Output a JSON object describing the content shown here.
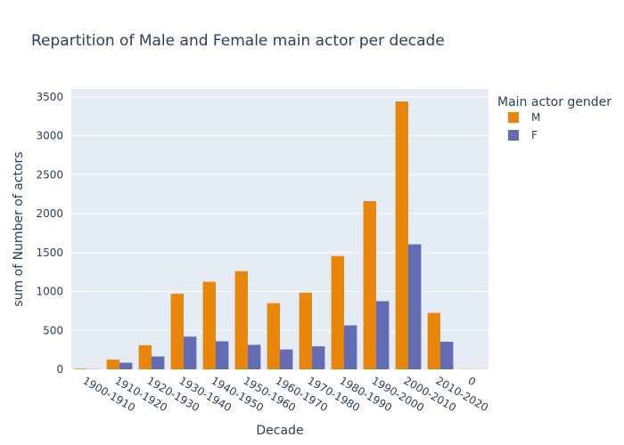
{
  "chart_data": {
    "type": "bar",
    "title": "Repartition of Male and Female main actor per decade",
    "xlabel": "Decade",
    "ylabel": "sum of Number of actors",
    "ylim": [
      0,
      3600
    ],
    "yticks": [
      0,
      500,
      1000,
      1500,
      2000,
      2500,
      3000,
      3500
    ],
    "categories": [
      "1900-1910",
      "1910-1920",
      "1920-1930",
      "1930-1940",
      "1940-1950",
      "1950-1960",
      "1960-1970",
      "1970-1980",
      "1980-1990",
      "1990-2000",
      "2000-2010",
      "2010-2020",
      "0"
    ],
    "series": [
      {
        "name": "M",
        "color": "#e8860c",
        "values": [
          8,
          125,
          310,
          970,
          1125,
          1260,
          850,
          985,
          1455,
          2160,
          3440,
          725,
          2
        ]
      },
      {
        "name": "F",
        "color": "#636bb3",
        "values": [
          2,
          85,
          165,
          420,
          360,
          315,
          255,
          295,
          565,
          875,
          1605,
          355,
          1
        ]
      }
    ],
    "legend": {
      "title": "Main actor gender",
      "position": "right"
    },
    "grid": true,
    "plot_background": "#e5ecf6"
  }
}
